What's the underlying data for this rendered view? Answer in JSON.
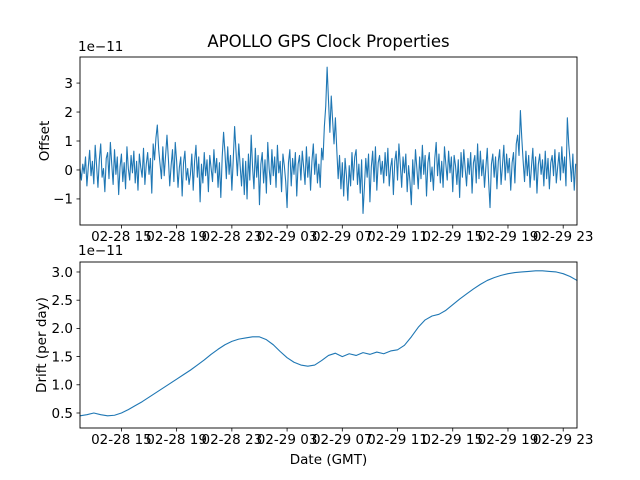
{
  "chart_data": [
    {
      "id": "offset",
      "type": "line",
      "title": "APOLLO GPS Clock Properties",
      "ylabel": "Offset",
      "offset_label": "1e−11",
      "line_color": "#1f77b4",
      "axis_color": "#000000",
      "x_start": "02-28 12:00 GMT",
      "xlim_hours": [
        0,
        36
      ],
      "ylim": [
        -1.9,
        3.9
      ],
      "grid": false,
      "legend": "none",
      "yticks": [
        {
          "v": -1,
          "label": "−1"
        },
        {
          "v": 0,
          "label": "0"
        },
        {
          "v": 1,
          "label": "1"
        },
        {
          "v": 2,
          "label": "2"
        },
        {
          "v": 3,
          "label": "3"
        }
      ],
      "xticks": [
        {
          "t": 3,
          "label": "02-28 15"
        },
        {
          "t": 7,
          "label": "02-28 19"
        },
        {
          "t": 11,
          "label": "02-28 23"
        },
        {
          "t": 15,
          "label": "02-29 03"
        },
        {
          "t": 19,
          "label": "02-29 07"
        },
        {
          "t": 23,
          "label": "02-29 11"
        },
        {
          "t": 27,
          "label": "02-29 15"
        },
        {
          "t": 31,
          "label": "02-29 19"
        },
        {
          "t": 35,
          "label": "02-29 23"
        }
      ],
      "x_step_hours": 0.1,
      "values": [
        0.05,
        -0.35,
        0.2,
        -0.12,
        0.45,
        -0.55,
        0.1,
        0.68,
        -0.2,
        0.3,
        -0.48,
        0.85,
        0.15,
        -0.6,
        0.35,
        0.9,
        -0.25,
        0.05,
        -0.75,
        0.4,
        0.6,
        -0.3,
        0.95,
        0.2,
        -0.5,
        0.7,
        -0.15,
        0.45,
        -0.85,
        0.1,
        0.55,
        -0.4,
        0.25,
        -0.65,
        0.8,
        0.05,
        -0.35,
        0.5,
        -0.1,
        0.65,
        -0.45,
        0.3,
        -0.7,
        0.55,
        0.1,
        -0.25,
        0.75,
        -0.5,
        0.2,
        0.6,
        -0.15,
        0.4,
        -0.8,
        0.9,
        0.35,
        1.1,
        1.55,
        0.7,
        0.2,
        -0.3,
        0.8,
        -0.2,
        0.5,
        1.2,
        0.4,
        -0.55,
        0.15,
        0.7,
        -0.4,
        0.95,
        0.3,
        -0.6,
        0.1,
        0.45,
        -0.9,
        0.25,
        0.65,
        -0.35,
        0.05,
        -0.5,
        -0.15,
        0.55,
        -0.7,
        0.3,
        0.85,
        -0.25,
        0.45,
        -1.1,
        0.2,
        -0.45,
        0.6,
        -0.2,
        0.35,
        -0.75,
        0.5,
        0.05,
        -0.4,
        0.7,
        -0.1,
        0.4,
        -0.6,
        0.25,
        -0.95,
        0.45,
        1.3,
        0.6,
        -0.3,
        0.8,
        -0.15,
        0.5,
        -0.7,
        0.35,
        1.5,
        0.65,
        -0.2,
        0.9,
        0.15,
        -0.55,
        0.4,
        -0.85,
        0.3,
        -1.0,
        0.55,
        -0.35,
        1.2,
        0.1,
        -0.65,
        0.75,
        -0.25,
        0.5,
        -1.2,
        0.2,
        0.6,
        -0.45,
        0.35,
        -0.8,
        0.95,
        0.05,
        -0.5,
        0.7,
        -0.2,
        0.45,
        -0.6,
        0.85,
        -0.1,
        0.3,
        -0.75,
        0.55,
        0.15,
        -0.4,
        -1.3,
        0.25,
        0.7,
        -0.55,
        0.4,
        -0.15,
        0.6,
        -0.9,
        0.2,
        0.5,
        -0.35,
        0.65,
        0.1,
        -0.5,
        0.8,
        -0.25,
        0.45,
        -0.7,
        0.3,
        0.9,
        -0.15,
        0.55,
        -0.45,
        0.2,
        -0.6,
        0.75,
        0.35,
        1.5,
        2.2,
        3.55,
        2.4,
        1.3,
        2.55,
        1.7,
        0.9,
        1.8,
        0.7,
        -0.3,
        0.5,
        -0.65,
        0.25,
        -0.9,
        0.4,
        -0.2,
        -1.05,
        0.15,
        -0.55,
        0.6,
        -0.35,
        0.45,
        0.7,
        -0.5,
        0.2,
        -0.8,
        0.35,
        -1.5,
        -0.6,
        0.4,
        -0.25,
        0.55,
        -1.1,
        0.1,
        0.65,
        -0.4,
        0.8,
        -0.7,
        0.25,
        0.5,
        -0.15,
        0.3,
        -0.45,
        0.6,
        -0.2,
        0.75,
        -0.55,
        0.1,
        0.4,
        -0.85,
        0.3,
        0.65,
        -0.35,
        0.9,
        0.2,
        -0.6,
        0.45,
        -0.1,
        0.55,
        -0.75,
        0.15,
        -0.4,
        -1.2,
        0.35,
        -0.5,
        0.7,
        0.05,
        -0.65,
        0.45,
        -0.3,
        0.85,
        -0.15,
        0.5,
        -0.9,
        0.25,
        0.6,
        -0.4,
        0.1,
        -0.7,
        0.4,
        0.95,
        -0.2,
        0.55,
        -0.45,
        0.3,
        -0.6,
        0.8,
        0.2,
        -0.35,
        0.65,
        -0.1,
        0.45,
        -0.75,
        0.5,
        0.15,
        -0.5,
        0.35,
        -0.95,
        0.6,
        -0.25,
        0.7,
        0.05,
        -0.55,
        0.4,
        -0.15,
        0.6,
        -0.8,
        0.25,
        0.5,
        -0.45,
        0.9,
        -0.3,
        0.65,
        -0.2,
        0.35,
        -0.6,
        0.1,
        0.75,
        -0.4,
        -1.3,
        0.2,
        0.55,
        -0.25,
        0.45,
        -0.65,
        0.3,
        0.7,
        -0.5,
        0.15,
        0.85,
        -0.35,
        0.55,
        -0.1,
        0.4,
        -0.7,
        0.25,
        0.6,
        -0.45,
        0.9,
        1.2,
        0.5,
        2.05,
        1.1,
        0.3,
        -0.4,
        0.65,
        -0.2,
        0.5,
        -0.6,
        0.1,
        0.75,
        -0.35,
        0.45,
        -0.8,
        0.2,
        0.55,
        -0.15,
        0.35,
        -0.55,
        0.65,
        -0.3,
        0.4,
        -0.65,
        0.25,
        0.5,
        -0.2,
        0.7,
        -0.45,
        0.1,
        0.6,
        -0.35,
        0.8,
        -0.1,
        0.45,
        -0.55,
        1.8,
        0.9,
        0.3,
        -0.4,
        0.55,
        -0.7,
        0.2
      ]
    },
    {
      "id": "drift",
      "type": "line",
      "ylabel": "Drift (per day)",
      "xlabel": "Date (GMT)",
      "offset_label": "1e−11",
      "line_color": "#1f77b4",
      "axis_color": "#000000",
      "x_start": "02-28 12:00 GMT",
      "xlim_hours": [
        0,
        36
      ],
      "ylim": [
        0.234,
        3.177
      ],
      "grid": false,
      "legend": "none",
      "yticks": [
        {
          "v": 0.5,
          "label": "0.5"
        },
        {
          "v": 1.0,
          "label": "1.0"
        },
        {
          "v": 1.5,
          "label": "1.5"
        },
        {
          "v": 2.0,
          "label": "2.0"
        },
        {
          "v": 2.5,
          "label": "2.5"
        },
        {
          "v": 3.0,
          "label": "3.0"
        }
      ],
      "xticks": [
        {
          "t": 3,
          "label": "02-28 15"
        },
        {
          "t": 7,
          "label": "02-28 19"
        },
        {
          "t": 11,
          "label": "02-28 23"
        },
        {
          "t": 15,
          "label": "02-29 03"
        },
        {
          "t": 19,
          "label": "02-29 07"
        },
        {
          "t": 23,
          "label": "02-29 11"
        },
        {
          "t": 27,
          "label": "02-29 15"
        },
        {
          "t": 31,
          "label": "02-29 19"
        },
        {
          "t": 35,
          "label": "02-29 23"
        }
      ],
      "x_step_hours": 0.5,
      "values": [
        0.45,
        0.47,
        0.5,
        0.47,
        0.45,
        0.46,
        0.5,
        0.56,
        0.63,
        0.7,
        0.78,
        0.86,
        0.94,
        1.02,
        1.1,
        1.18,
        1.26,
        1.35,
        1.44,
        1.54,
        1.63,
        1.71,
        1.77,
        1.81,
        1.83,
        1.85,
        1.85,
        1.8,
        1.71,
        1.59,
        1.48,
        1.4,
        1.35,
        1.33,
        1.35,
        1.43,
        1.52,
        1.56,
        1.5,
        1.55,
        1.52,
        1.57,
        1.54,
        1.58,
        1.55,
        1.6,
        1.62,
        1.7,
        1.85,
        2.02,
        2.15,
        2.22,
        2.25,
        2.32,
        2.42,
        2.52,
        2.61,
        2.7,
        2.78,
        2.85,
        2.9,
        2.94,
        2.97,
        2.99,
        3.0,
        3.01,
        3.02,
        3.02,
        3.01,
        3.0,
        2.97,
        2.92,
        2.85
      ]
    }
  ]
}
